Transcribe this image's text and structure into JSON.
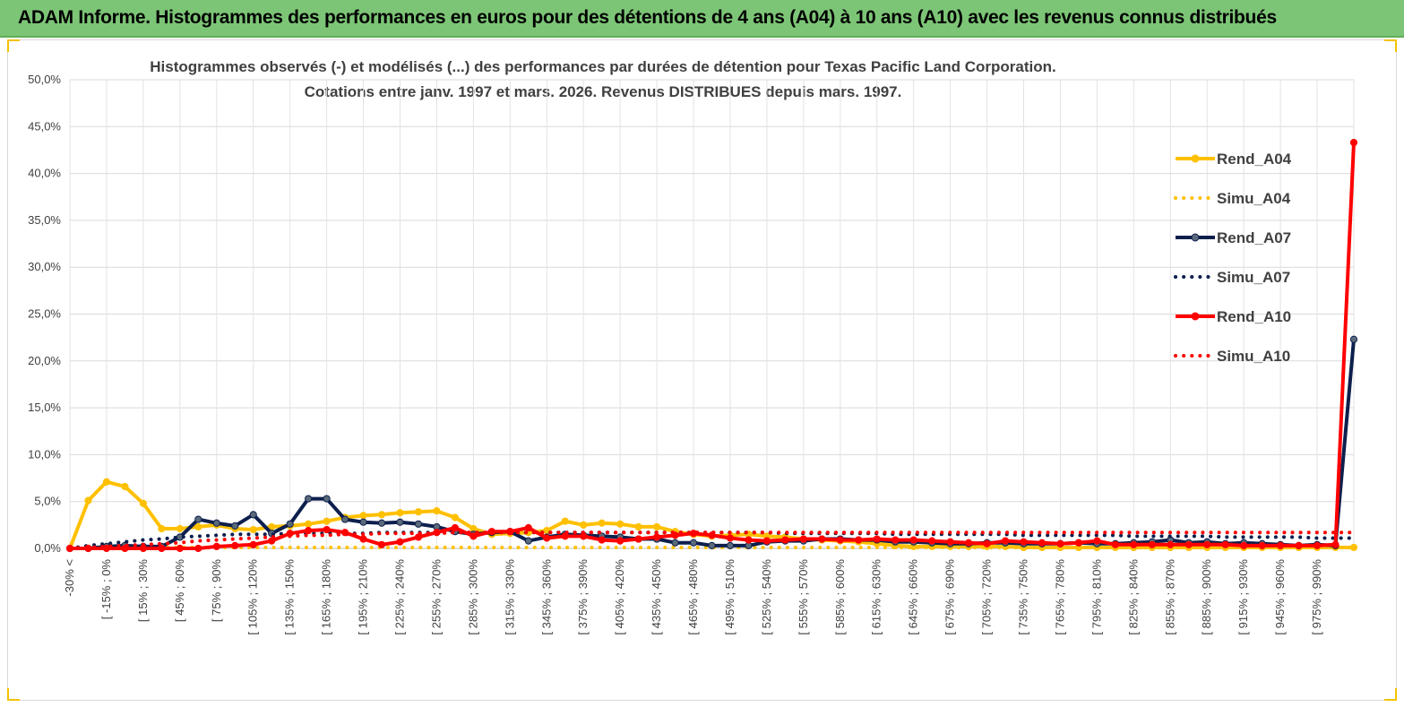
{
  "header": {
    "banner_title": "ADAM Informe. Histogrammes des performances en euros pour des détentions de 4 ans (A04) à 10 ans (A10) avec les revenus connus distribués"
  },
  "colors": {
    "banner": "#7cc576",
    "a04": "#ffc000",
    "a07": "#0d1f4d",
    "a10": "#ff0000",
    "marker_a07": "#5a6a7a"
  },
  "chart_data": {
    "type": "line",
    "title": "Histogrammes observés (-) et modélisés (...) des performances par durées de détention pour Texas Pacific Land Corporation.",
    "subtitle": "Cotations entre janv. 1997 et mars. 2026.  Revenus DISTRIBUES depuis mars. 1997.",
    "xlabel": "",
    "ylabel": "",
    "ylim": [
      0,
      50
    ],
    "yticks": [
      "0,0%",
      "5,0%",
      "10,0%",
      "15,0%",
      "20,0%",
      "25,0%",
      "30,0%",
      "35,0%",
      "40,0%",
      "45,0%",
      "50,0%"
    ],
    "x_tick_labels": [
      "-30% <",
      "[ -15% ; 0%",
      "[ 15% ; 30%",
      "[ 45% ; 60%",
      "[ 75% ; 90%",
      "[ 105% ; 120%",
      "[ 135% ; 150%",
      "[ 165% ; 180%",
      "[ 195% ; 210%",
      "[ 225% ; 240%",
      "[ 255% ; 270%",
      "[ 285% ; 300%",
      "[ 315% ; 330%",
      "[ 345% ; 360%",
      "[ 375% ; 390%",
      "[ 405% ; 420%",
      "[ 435% ; 450%",
      "[ 465% ; 480%",
      "[ 495% ; 510%",
      "[ 525% ; 540%",
      "[ 555% ; 570%",
      "[ 585% ; 600%",
      "[ 615% ; 630%",
      "[ 645% ; 660%",
      "[ 675% ; 690%",
      "[ 705% ; 720%",
      "[ 735% ; 750%",
      "[ 765% ; 780%",
      "[ 795% ; 810%",
      "[ 825% ; 840%",
      "[ 855% ; 870%",
      "[ 885% ; 900%",
      "[ 915% ; 930%",
      "[ 945% ; 960%",
      "[ 975% ; 990%"
    ],
    "category_count": 71,
    "legend_position": "right",
    "series": [
      {
        "name": "Rend_A04",
        "style": "solid",
        "color": "#ffc000",
        "values": [
          0,
          5.1,
          7.1,
          6.6,
          4.8,
          2.1,
          2.1,
          2.3,
          2.5,
          2.1,
          2.0,
          2.3,
          2.4,
          2.6,
          2.9,
          3.3,
          3.5,
          3.6,
          3.8,
          3.9,
          4.0,
          3.3,
          2.1,
          1.5,
          1.6,
          1.7,
          1.9,
          2.9,
          2.5,
          2.7,
          2.6,
          2.3,
          2.3,
          1.8,
          1.5,
          1.3,
          1.4,
          1.5,
          1.3,
          1.2,
          1.0,
          0.9,
          0.8,
          0.7,
          0.5,
          0.3,
          0.2,
          0.2,
          0.2,
          0.2,
          0.2,
          0.2,
          0.1,
          0.1,
          0.1,
          0.1,
          0.1,
          0.1,
          0.1,
          0.1,
          0.1,
          0.1,
          0.1,
          0.1,
          0.1,
          0.1,
          0.1,
          0.1,
          0.1,
          0.1,
          0.1
        ]
      },
      {
        "name": "Simu_A04",
        "style": "dotted",
        "color": "#ffc000",
        "values": [
          0,
          0.1,
          0.1,
          0.1,
          0.1,
          0.1,
          0.1,
          0.1,
          0.1,
          0.1,
          0.1,
          0.1,
          0.1,
          0.1,
          0.1,
          0.1,
          0.1,
          0.1,
          0.1,
          0.1,
          0.1,
          0.1,
          0.1,
          0.1,
          0.1,
          0.1,
          0.1,
          0.1,
          0.1,
          0.1,
          0.1,
          0.1,
          0.1,
          0.1,
          0.1,
          0.1,
          0.1,
          0.1,
          0.1,
          0.1,
          0.1,
          0.1,
          0.1,
          0.1,
          0.1,
          0.1,
          0.1,
          0.1,
          0.1,
          0.1,
          0.1,
          0.1,
          0.1,
          0.1,
          0.1,
          0.1,
          0.1,
          0.1,
          0.1,
          0.1,
          0.1,
          0.1,
          0.1,
          0.1,
          0.1,
          0.1,
          0.1,
          0.1,
          0.1,
          0.1,
          0.1
        ]
      },
      {
        "name": "Rend_A07",
        "style": "solid",
        "color": "#0d1f4d",
        "values": [
          0,
          0,
          0.2,
          0.3,
          0.2,
          0.2,
          1.2,
          3.1,
          2.7,
          2.4,
          3.6,
          1.6,
          2.6,
          5.3,
          5.3,
          3.1,
          2.8,
          2.7,
          2.8,
          2.6,
          2.3,
          1.8,
          1.5,
          1.7,
          1.8,
          0.8,
          1.2,
          1.5,
          1.4,
          1.3,
          1.2,
          1.0,
          1.0,
          0.6,
          0.6,
          0.3,
          0.3,
          0.3,
          0.7,
          0.8,
          0.8,
          1.0,
          1.0,
          0.9,
          0.9,
          0.7,
          0.7,
          0.6,
          0.5,
          0.5,
          0.6,
          0.6,
          0.5,
          0.5,
          0.5,
          0.6,
          0.5,
          0.5,
          0.6,
          0.7,
          0.9,
          0.6,
          0.7,
          0.5,
          0.6,
          0.5,
          0.4,
          0.3,
          0.4,
          0.3,
          22.3
        ]
      },
      {
        "name": "Simu_A07",
        "style": "dotted",
        "color": "#0d1f4d",
        "values": [
          0,
          0.3,
          0.5,
          0.7,
          0.9,
          1.0,
          1.2,
          1.3,
          1.4,
          1.5,
          1.5,
          1.5,
          1.6,
          1.6,
          1.6,
          1.6,
          1.6,
          1.7,
          1.7,
          1.7,
          1.7,
          1.7,
          1.7,
          1.7,
          1.7,
          1.7,
          1.7,
          1.7,
          1.7,
          1.7,
          1.7,
          1.7,
          1.7,
          1.7,
          1.7,
          1.7,
          1.7,
          1.7,
          1.7,
          1.6,
          1.6,
          1.6,
          1.6,
          1.6,
          1.6,
          1.5,
          1.5,
          1.5,
          1.5,
          1.5,
          1.5,
          1.5,
          1.4,
          1.4,
          1.4,
          1.4,
          1.4,
          1.4,
          1.3,
          1.3,
          1.3,
          1.3,
          1.3,
          1.2,
          1.2,
          1.2,
          1.2,
          1.2,
          1.1,
          1.1,
          1.1
        ]
      },
      {
        "name": "Rend_A10",
        "style": "solid",
        "color": "#ff0000",
        "values": [
          0,
          0,
          0,
          0,
          0,
          0,
          0,
          0,
          0.2,
          0.3,
          0.4,
          0.8,
          1.6,
          1.9,
          2.0,
          1.7,
          1.0,
          0.4,
          0.7,
          1.2,
          1.7,
          2.2,
          1.3,
          1.8,
          1.8,
          2.2,
          1.1,
          1.3,
          1.3,
          0.9,
          0.8,
          1.0,
          1.2,
          1.4,
          1.6,
          1.4,
          1.1,
          0.9,
          0.8,
          0.9,
          1.0,
          1.0,
          0.9,
          0.9,
          1.0,
          0.9,
          0.9,
          0.8,
          0.7,
          0.6,
          0.5,
          0.8,
          0.7,
          0.6,
          0.5,
          0.6,
          0.8,
          0.4,
          0.4,
          0.4,
          0.4,
          0.4,
          0.4,
          0.4,
          0.3,
          0.3,
          0.3,
          0.3,
          0.3,
          0.4,
          43.3
        ]
      },
      {
        "name": "Simu_A10",
        "style": "dotted",
        "color": "#ff0000",
        "values": [
          0,
          0.1,
          0.2,
          0.3,
          0.4,
          0.5,
          0.6,
          0.8,
          0.9,
          1.0,
          1.1,
          1.2,
          1.3,
          1.4,
          1.4,
          1.5,
          1.5,
          1.6,
          1.6,
          1.6,
          1.6,
          1.7,
          1.7,
          1.7,
          1.7,
          1.7,
          1.7,
          1.7,
          1.7,
          1.7,
          1.7,
          1.7,
          1.7,
          1.7,
          1.7,
          1.7,
          1.7,
          1.7,
          1.7,
          1.7,
          1.7,
          1.7,
          1.7,
          1.7,
          1.7,
          1.7,
          1.7,
          1.7,
          1.7,
          1.7,
          1.7,
          1.7,
          1.7,
          1.7,
          1.7,
          1.7,
          1.7,
          1.7,
          1.7,
          1.7,
          1.7,
          1.7,
          1.7,
          1.7,
          1.7,
          1.7,
          1.7,
          1.7,
          1.7,
          1.7,
          1.7
        ]
      }
    ]
  }
}
